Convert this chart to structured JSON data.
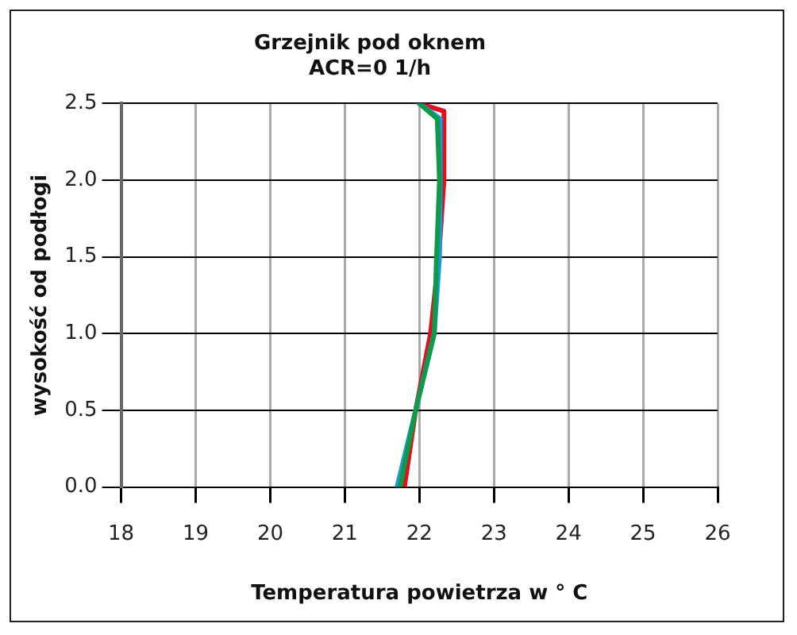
{
  "chart_data": {
    "type": "line",
    "title": "Grzejnik pod oknem\nACR=0 1/h",
    "xlabel": "Temperatura powietrza w ° C",
    "ylabel": "wysokość od podłogi",
    "xlim": [
      18,
      26
    ],
    "xticks": [
      18,
      19,
      20,
      21,
      22,
      23,
      24,
      25,
      26
    ],
    "ylim": [
      0,
      2.5
    ],
    "yticks": [
      {
        "value": 0,
        "label": "0.0"
      },
      0.5,
      {
        "value": 1,
        "label": "1.0"
      },
      1.5,
      {
        "value": 2,
        "label": "2.0"
      },
      2.5
    ],
    "grid": true,
    "marker": "none",
    "series": [
      {
        "color": "#e0101e",
        "x": [
          21.8,
          21.95,
          22.15,
          22.26,
          22.33,
          22.33,
          22.0
        ],
        "values": [
          0,
          0.5,
          1,
          1.5,
          2,
          2.45,
          2.5
        ]
      },
      {
        "color": "#1a9ad8",
        "x": [
          21.7,
          21.95,
          22.2,
          22.27,
          22.28,
          22.28,
          22.0
        ],
        "values": [
          0,
          0.5,
          1,
          1.5,
          2,
          2.4,
          2.5
        ]
      },
      {
        "color": "#0e9a48",
        "x": [
          21.74,
          21.95,
          22.2,
          22.23,
          22.27,
          22.24,
          22.0
        ],
        "values": [
          0,
          0.5,
          1,
          1.5,
          2,
          2.4,
          2.5
        ]
      }
    ]
  }
}
